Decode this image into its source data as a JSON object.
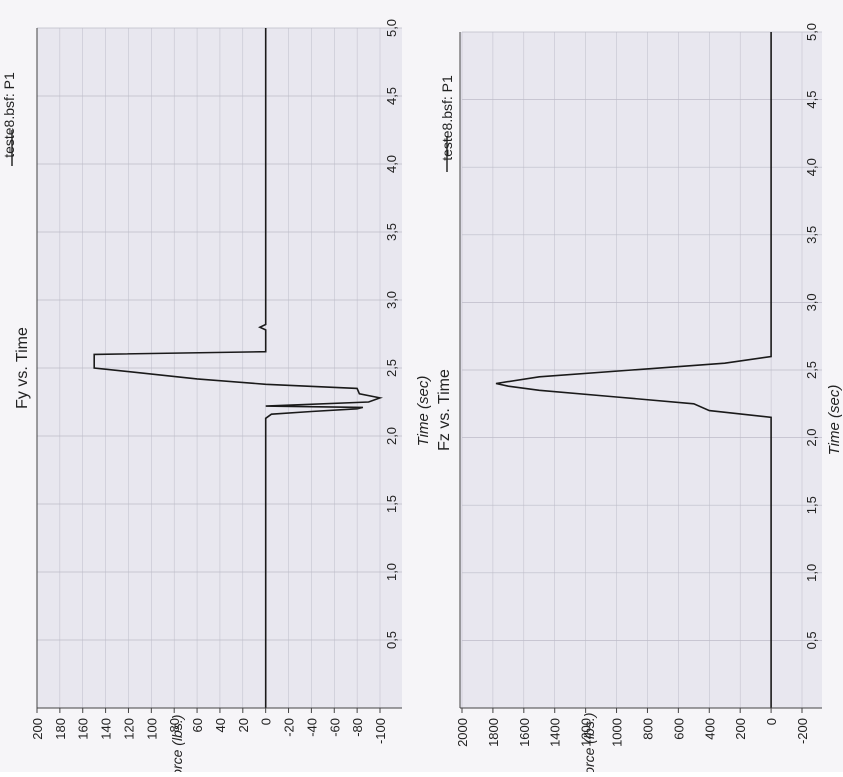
{
  "colors": {
    "plot_background": "#e8e7ef",
    "paper": "#f6f5f8",
    "line": "#1a1a1a",
    "grid": "#bdbcc8"
  },
  "chart_data": [
    {
      "type": "line",
      "title": "Fy vs. Time",
      "xlabel": "Time (sec)",
      "ylabel": "Force (lbs.)",
      "xlim": [
        0,
        5.0
      ],
      "ylim": [
        -100,
        200
      ],
      "x_ticks": [
        "0,5",
        "1,0",
        "1,5",
        "2,0",
        "2,5",
        "3,0",
        "3,5",
        "4,0",
        "4,5",
        "5,0"
      ],
      "y_ticks": [
        "200",
        "180",
        "160",
        "140",
        "120",
        "100",
        "80",
        "60",
        "40",
        "20",
        "0",
        "-20",
        "-40",
        "-60",
        "-80",
        "-100"
      ],
      "grid": true,
      "legend": "top-right",
      "orientation": "rotated 90 degrees counter-clockwise",
      "series": [
        {
          "name": "teste8.bsf: P1",
          "x": [
            0,
            1.0,
            2.0,
            2.13,
            2.16,
            2.18,
            2.2,
            2.21,
            2.22,
            2.25,
            2.28,
            2.31,
            2.35,
            2.38,
            2.42,
            2.5,
            2.55,
            2.6,
            2.62,
            2.65,
            2.7,
            2.78,
            2.8,
            2.82,
            5.0
          ],
          "y": [
            0,
            0,
            0,
            0,
            -5,
            -40,
            -80,
            -85,
            0,
            -90,
            -100,
            -82,
            -80,
            0,
            60,
            150,
            150,
            150,
            0,
            0,
            0,
            0,
            5,
            0,
            0
          ]
        }
      ]
    },
    {
      "type": "line",
      "title": "Fz vs. Time",
      "xlabel": "Time (sec)",
      "ylabel": "Force (lbs.)",
      "xlim": [
        0,
        5.0
      ],
      "ylim": [
        -200,
        2000
      ],
      "x_ticks": [
        "0,5",
        "1,0",
        "1,5",
        "2,0",
        "2,5",
        "3,0",
        "3,5",
        "4,0",
        "4,5",
        "5,0"
      ],
      "y_ticks": [
        "2000",
        "1800",
        "1600",
        "1400",
        "1200",
        "1000",
        "800",
        "600",
        "400",
        "200",
        "0",
        "-200"
      ],
      "grid": true,
      "legend": "top-right",
      "orientation": "rotated 90 degrees counter-clockwise",
      "series": [
        {
          "name": "teste8.bsf: P1",
          "x": [
            0,
            2.15,
            2.2,
            2.25,
            2.3,
            2.35,
            2.38,
            2.4,
            2.45,
            2.5,
            2.55,
            2.6,
            5.0
          ],
          "y": [
            0,
            0,
            400,
            500,
            1000,
            1500,
            1700,
            1780,
            1500,
            900,
            300,
            0,
            0
          ]
        }
      ]
    }
  ]
}
